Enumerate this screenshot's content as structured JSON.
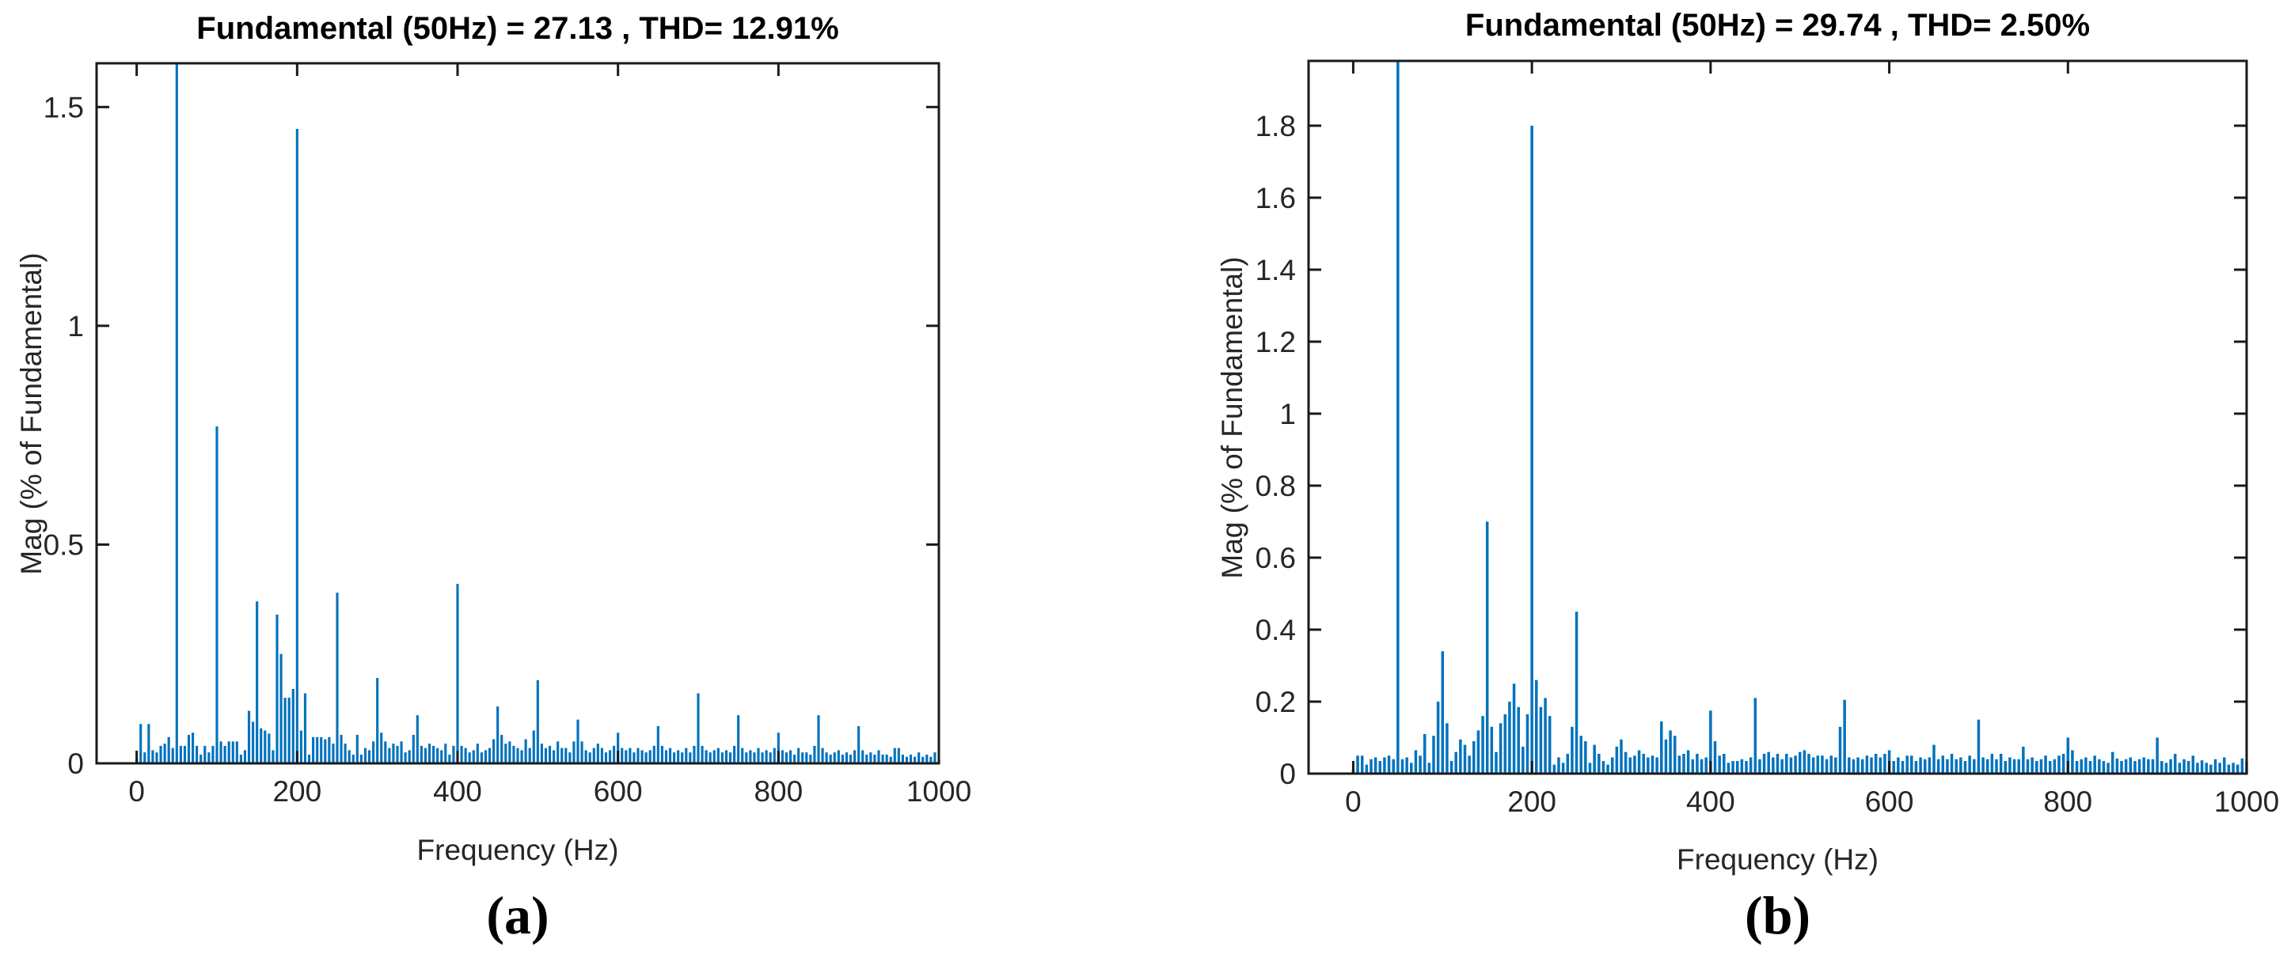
{
  "page": {
    "background": "#ffffff"
  },
  "chart_data": [
    {
      "id": "a",
      "type": "bar",
      "title": "Fundamental (50Hz) = 27.13 , THD= 12.91%",
      "xlabel": "Frequency (Hz)",
      "ylabel": "Mag (% of Fundamental)",
      "caption": "(a)",
      "fundamental_hz": 50,
      "fundamental_value": "27.13",
      "thd_percent": "12.91",
      "xlim": [
        -50,
        1000
      ],
      "ylim": [
        0,
        1.6
      ],
      "xticks": [
        0,
        200,
        400,
        600,
        800,
        1000
      ],
      "xtick_labels": [
        "0",
        "200",
        "400",
        "600",
        "800",
        "1000"
      ],
      "yticks": [
        0,
        0.5,
        1,
        1.5
      ],
      "ytick_labels": [
        "0",
        "0.5",
        "1",
        "1.5"
      ],
      "grid": false,
      "legend": "none",
      "bar_color": "#0072BD",
      "axis_color": "#1a1a1a",
      "freq_step": 5,
      "values": [
        0.01,
        0.09,
        0.025,
        0.09,
        0.03,
        0.025,
        0.04,
        0.045,
        0.06,
        0.035,
        1.6,
        0.04,
        0.04,
        0.065,
        0.07,
        0.04,
        0.02,
        0.04,
        0.025,
        0.04,
        0.77,
        0.05,
        0.04,
        0.05,
        0.05,
        0.05,
        0.02,
        0.03,
        0.12,
        0.095,
        0.37,
        0.08,
        0.075,
        0.068,
        0.03,
        0.34,
        0.25,
        0.15,
        0.15,
        0.17,
        1.45,
        0.075,
        0.16,
        0.02,
        0.06,
        0.06,
        0.06,
        0.055,
        0.06,
        0.045,
        0.39,
        0.065,
        0.045,
        0.03,
        0.02,
        0.065,
        0.02,
        0.035,
        0.03,
        0.05,
        0.195,
        0.07,
        0.05,
        0.035,
        0.045,
        0.04,
        0.05,
        0.025,
        0.03,
        0.065,
        0.11,
        0.04,
        0.035,
        0.045,
        0.04,
        0.035,
        0.03,
        0.045,
        0.02,
        0.04,
        0.41,
        0.04,
        0.035,
        0.025,
        0.03,
        0.045,
        0.025,
        0.03,
        0.035,
        0.055,
        0.13,
        0.065,
        0.045,
        0.05,
        0.04,
        0.035,
        0.03,
        0.055,
        0.035,
        0.075,
        0.19,
        0.045,
        0.035,
        0.04,
        0.03,
        0.05,
        0.035,
        0.035,
        0.025,
        0.05,
        0.1,
        0.05,
        0.03,
        0.025,
        0.035,
        0.045,
        0.035,
        0.025,
        0.03,
        0.04,
        0.07,
        0.035,
        0.03,
        0.035,
        0.025,
        0.035,
        0.03,
        0.025,
        0.03,
        0.04,
        0.085,
        0.04,
        0.03,
        0.035,
        0.025,
        0.03,
        0.025,
        0.035,
        0.025,
        0.04,
        0.16,
        0.04,
        0.03,
        0.025,
        0.03,
        0.035,
        0.025,
        0.03,
        0.025,
        0.04,
        0.11,
        0.035,
        0.025,
        0.03,
        0.025,
        0.035,
        0.025,
        0.03,
        0.025,
        0.035,
        0.07,
        0.03,
        0.025,
        0.03,
        0.02,
        0.035,
        0.025,
        0.025,
        0.02,
        0.04,
        0.11,
        0.035,
        0.025,
        0.02,
        0.025,
        0.03,
        0.02,
        0.025,
        0.02,
        0.03,
        0.085,
        0.03,
        0.02,
        0.025,
        0.02,
        0.03,
        0.02,
        0.02,
        0.015,
        0.035,
        0.035,
        0.02,
        0.015,
        0.02,
        0.015,
        0.025,
        0.015,
        0.02,
        0.015,
        0.025,
        0.01
      ]
    },
    {
      "id": "b",
      "type": "bar",
      "title": "Fundamental (50Hz) = 29.74 , THD= 2.50%",
      "xlabel": "Frequency (Hz)",
      "ylabel": "Mag (% of Fundamental)",
      "caption": "(b)",
      "fundamental_hz": 50,
      "fundamental_value": "29.74",
      "thd_percent": "2.50",
      "xlim": [
        -50,
        1000
      ],
      "ylim": [
        0,
        1.98
      ],
      "xticks": [
        0,
        200,
        400,
        600,
        800,
        1000
      ],
      "xtick_labels": [
        "0",
        "200",
        "400",
        "600",
        "800",
        "1000"
      ],
      "yticks": [
        0,
        0.2,
        0.4,
        0.6,
        0.8,
        1,
        1.2,
        1.4,
        1.6,
        1.8
      ],
      "ytick_labels": [
        "0",
        "0.2",
        "0.4",
        "0.6",
        "0.8",
        "1",
        "1.2",
        "1.4",
        "1.6",
        "1.8"
      ],
      "grid": false,
      "legend": "none",
      "bar_color": "#0072BD",
      "axis_color": "#1a1a1a",
      "freq_step": 5,
      "values": [
        0.01,
        0.05,
        0.05,
        0.025,
        0.04,
        0.045,
        0.035,
        0.045,
        0.05,
        0.04,
        1.98,
        0.04,
        0.045,
        0.03,
        0.065,
        0.05,
        0.11,
        0.03,
        0.105,
        0.2,
        0.34,
        0.14,
        0.035,
        0.06,
        0.095,
        0.08,
        0.05,
        0.09,
        0.12,
        0.16,
        0.7,
        0.13,
        0.06,
        0.14,
        0.165,
        0.2,
        0.25,
        0.185,
        0.075,
        0.165,
        1.8,
        0.26,
        0.185,
        0.21,
        0.16,
        0.025,
        0.045,
        0.03,
        0.055,
        0.13,
        0.45,
        0.105,
        0.09,
        0.03,
        0.08,
        0.055,
        0.035,
        0.025,
        0.045,
        0.075,
        0.095,
        0.06,
        0.045,
        0.05,
        0.065,
        0.055,
        0.045,
        0.05,
        0.045,
        0.145,
        0.095,
        0.12,
        0.105,
        0.05,
        0.055,
        0.065,
        0.04,
        0.055,
        0.04,
        0.045,
        0.175,
        0.09,
        0.05,
        0.055,
        0.03,
        0.035,
        0.035,
        0.04,
        0.035,
        0.045,
        0.21,
        0.04,
        0.055,
        0.06,
        0.045,
        0.055,
        0.04,
        0.055,
        0.045,
        0.05,
        0.06,
        0.065,
        0.055,
        0.045,
        0.05,
        0.05,
        0.04,
        0.05,
        0.045,
        0.13,
        0.205,
        0.045,
        0.04,
        0.045,
        0.04,
        0.05,
        0.045,
        0.055,
        0.045,
        0.055,
        0.065,
        0.035,
        0.045,
        0.035,
        0.05,
        0.05,
        0.035,
        0.045,
        0.04,
        0.045,
        0.08,
        0.04,
        0.05,
        0.04,
        0.055,
        0.04,
        0.045,
        0.035,
        0.05,
        0.04,
        0.15,
        0.045,
        0.04,
        0.055,
        0.04,
        0.055,
        0.035,
        0.045,
        0.04,
        0.04,
        0.075,
        0.04,
        0.045,
        0.035,
        0.04,
        0.05,
        0.035,
        0.04,
        0.05,
        0.055,
        0.1,
        0.065,
        0.035,
        0.04,
        0.045,
        0.035,
        0.05,
        0.04,
        0.035,
        0.03,
        0.06,
        0.042,
        0.035,
        0.04,
        0.045,
        0.035,
        0.04,
        0.045,
        0.04,
        0.04,
        0.1,
        0.035,
        0.03,
        0.04,
        0.055,
        0.03,
        0.04,
        0.035,
        0.05,
        0.03,
        0.037,
        0.03,
        0.025,
        0.04,
        0.03,
        0.045,
        0.025,
        0.03,
        0.025,
        0.042,
        0.035
      ]
    }
  ]
}
